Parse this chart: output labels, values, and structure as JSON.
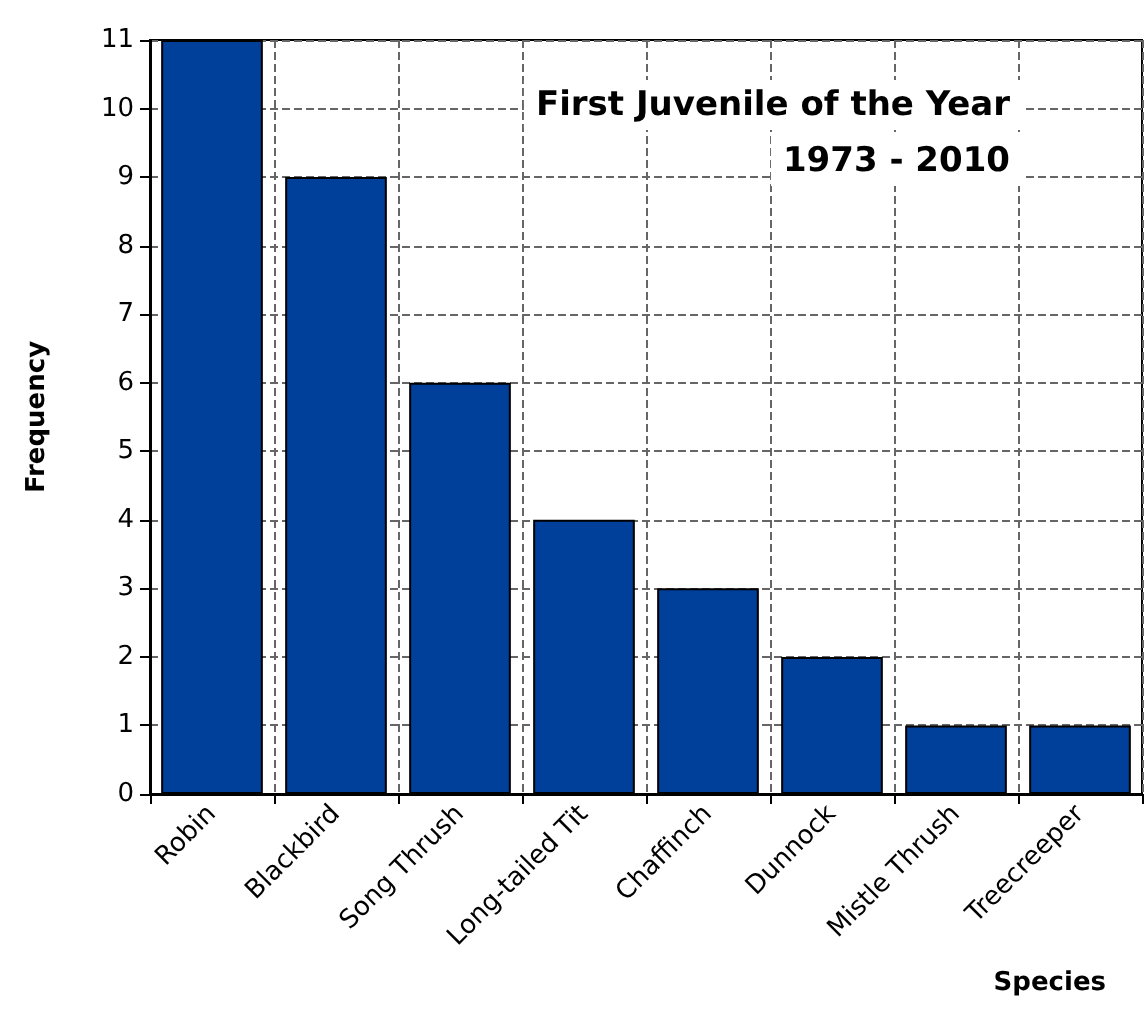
{
  "chart_data": {
    "type": "bar",
    "title": "First Juvenile of the Year",
    "subtitle": "1973 - 2010",
    "xlabel": "Species",
    "ylabel": "Frequency",
    "categories": [
      "Robin",
      "Blackbird",
      "Song Thrush",
      "Long-tailed Tit",
      "Chaffinch",
      "Dunnock",
      "Mistle Thrush",
      "Treecreeper"
    ],
    "values": [
      11,
      9,
      6,
      4,
      3,
      2,
      1,
      1
    ],
    "color": "#003f9a",
    "ylim": [
      0,
      11
    ],
    "yticks": [
      0,
      1,
      2,
      3,
      4,
      5,
      6,
      7,
      8,
      9,
      10,
      11
    ],
    "grid": true
  }
}
